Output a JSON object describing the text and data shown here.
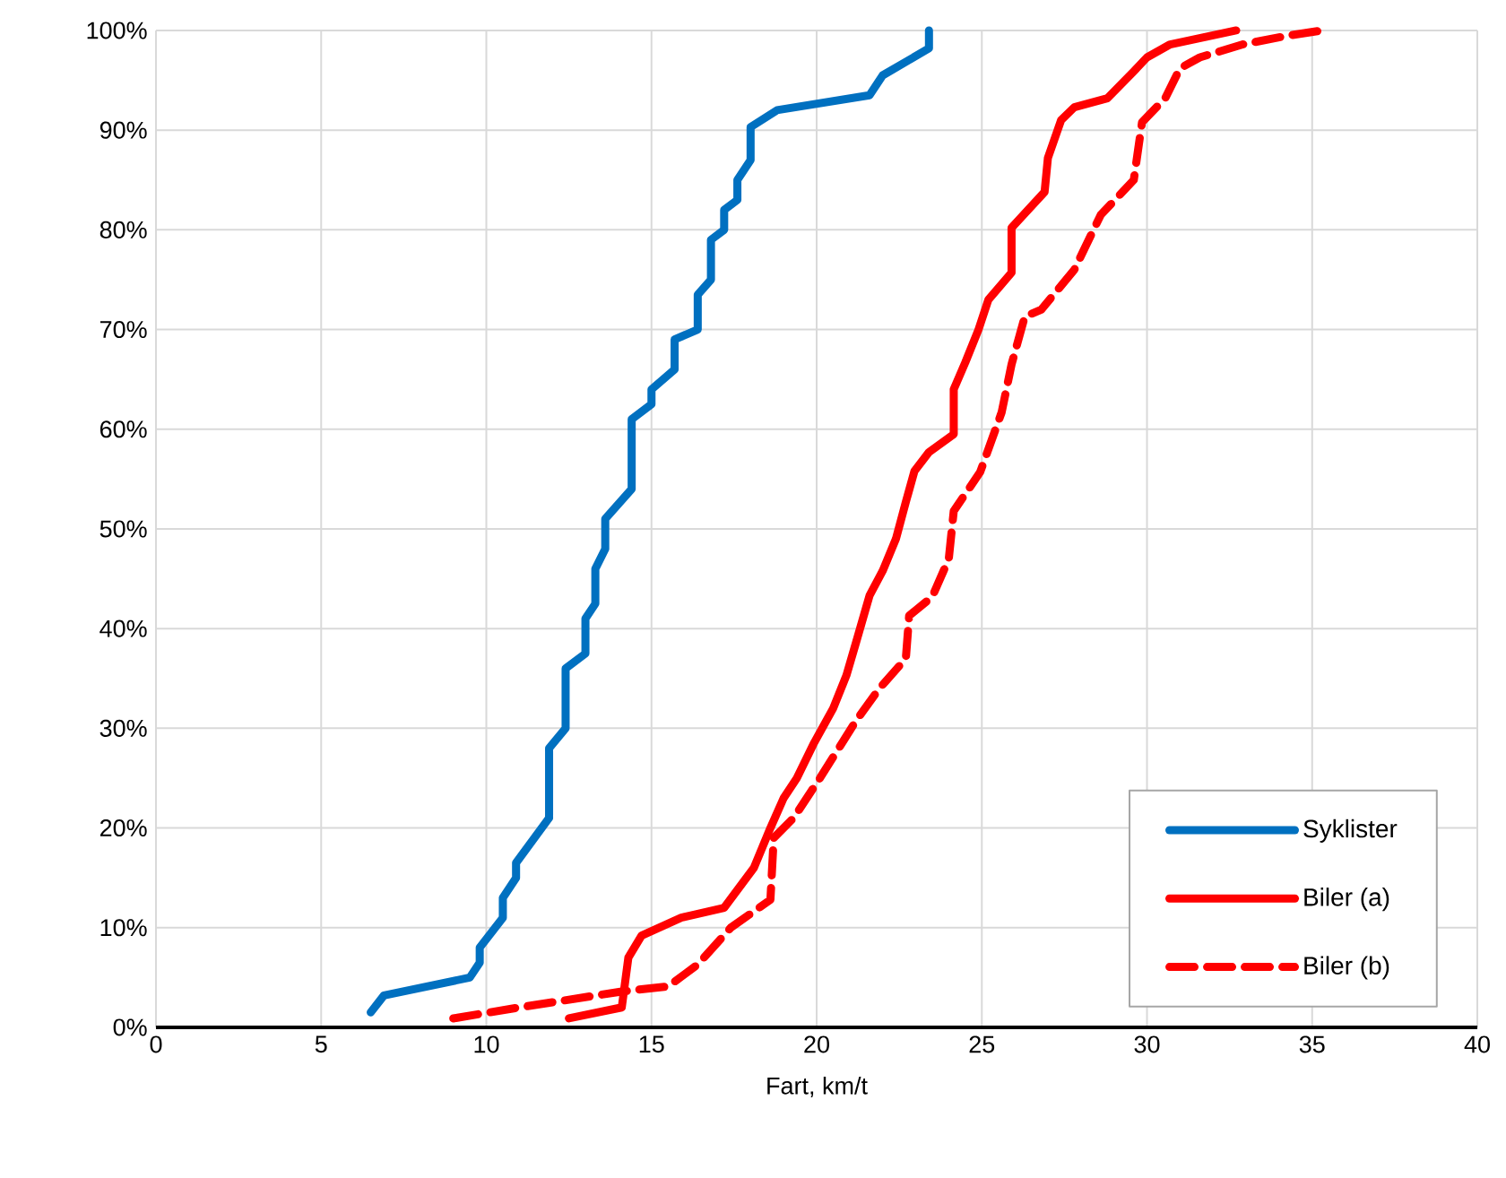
{
  "chart_data": {
    "type": "line",
    "xlabel": "Fart, km/t",
    "xlim": [
      0,
      40
    ],
    "xticks": [
      0,
      5,
      10,
      15,
      20,
      25,
      30,
      35,
      40
    ],
    "ylim": [
      0,
      100
    ],
    "yticks": [
      {
        "value": 0,
        "label": "0%"
      },
      {
        "value": 10,
        "label": "10%"
      },
      {
        "value": 20,
        "label": "20%"
      },
      {
        "value": 30,
        "label": "30%"
      },
      {
        "value": 40,
        "label": "40%"
      },
      {
        "value": 50,
        "label": "50%"
      },
      {
        "value": 60,
        "label": "60%"
      },
      {
        "value": 70,
        "label": "70%"
      },
      {
        "value": 80,
        "label": "80%"
      },
      {
        "value": 90,
        "label": "90%"
      },
      {
        "value": 100,
        "label": "100%"
      }
    ],
    "grid": true,
    "legend": "bottom right",
    "series": [
      {
        "name": "Syklister",
        "color": "#0070c0",
        "line_style": "solid",
        "x": [
          6.5,
          6.9,
          9.5,
          9.8,
          9.8,
          10.5,
          10.5,
          10.9,
          10.9,
          11.9,
          11.9,
          12.4,
          12.4,
          13.0,
          13.0,
          13.3,
          13.3,
          13.6,
          13.6,
          14.4,
          14.4,
          15.0,
          15.0,
          15.7,
          15.7,
          16.4,
          16.4,
          16.8,
          16.8,
          17.2,
          17.2,
          17.6,
          17.6,
          18.0,
          18.0,
          18.8,
          21.6,
          22.0,
          23.4,
          23.4
        ],
        "values": [
          1.5,
          3.2,
          5,
          6.5,
          8,
          11,
          13,
          15,
          16.5,
          21,
          28,
          30,
          36,
          37.5,
          41,
          42.5,
          46,
          48,
          51,
          54,
          61,
          62.5,
          64,
          66,
          69,
          70,
          73.5,
          75,
          79,
          80,
          82,
          83,
          85,
          87,
          90.3,
          92,
          93.5,
          95.5,
          98.2,
          100
        ]
      },
      {
        "name": "Biler (a)",
        "color": "#ff0000",
        "line_style": "solid",
        "x": [
          12.5,
          14.1,
          14.3,
          14.7,
          15.9,
          17.2,
          18.1,
          18.6,
          19.0,
          19.4,
          19.9,
          20.5,
          20.9,
          21.2,
          21.6,
          22.0,
          22.4,
          22.7,
          22.96,
          23.4,
          24.15,
          24.15,
          24.5,
          24.9,
          25.2,
          25.9,
          25.9,
          26.9,
          27.0,
          27.4,
          27.8,
          28.8,
          29.6,
          30.0,
          30.7,
          32.7
        ],
        "values": [
          0.9,
          2,
          7,
          9.2,
          11,
          12,
          16,
          20,
          23,
          25,
          28.4,
          32,
          35.3,
          38.7,
          43.3,
          45.8,
          49,
          52.7,
          55.8,
          57.7,
          59.5,
          64,
          66.7,
          70,
          73,
          75.7,
          80.2,
          83.8,
          87.2,
          91,
          92.3,
          93.2,
          95.9,
          97.3,
          98.6,
          100
        ]
      },
      {
        "name": "Biler (b)",
        "color": "#ff0000",
        "line_style": "dashed",
        "x": [
          9.0,
          11.0,
          14.1,
          15.5,
          16.4,
          17.4,
          18.6,
          18.7,
          19.3,
          20.1,
          21.2,
          21.9,
          22.7,
          22.8,
          23.5,
          24.0,
          24.15,
          24.95,
          25.6,
          25.9,
          26.3,
          26.8,
          27.8,
          28.6,
          29.6,
          29.85,
          30.55,
          31.0,
          31.6,
          32.9,
          34.3,
          35.3
        ],
        "values": [
          0.9,
          2,
          3.6,
          4.1,
          6.3,
          10,
          12.8,
          19,
          21,
          25,
          30.8,
          34,
          37,
          41.3,
          43.2,
          47,
          51.8,
          55.7,
          61.7,
          66.5,
          71.3,
          72,
          76,
          81.5,
          85,
          90.8,
          93.2,
          96.2,
          97.3,
          98.6,
          99.5,
          100
        ]
      }
    ]
  }
}
